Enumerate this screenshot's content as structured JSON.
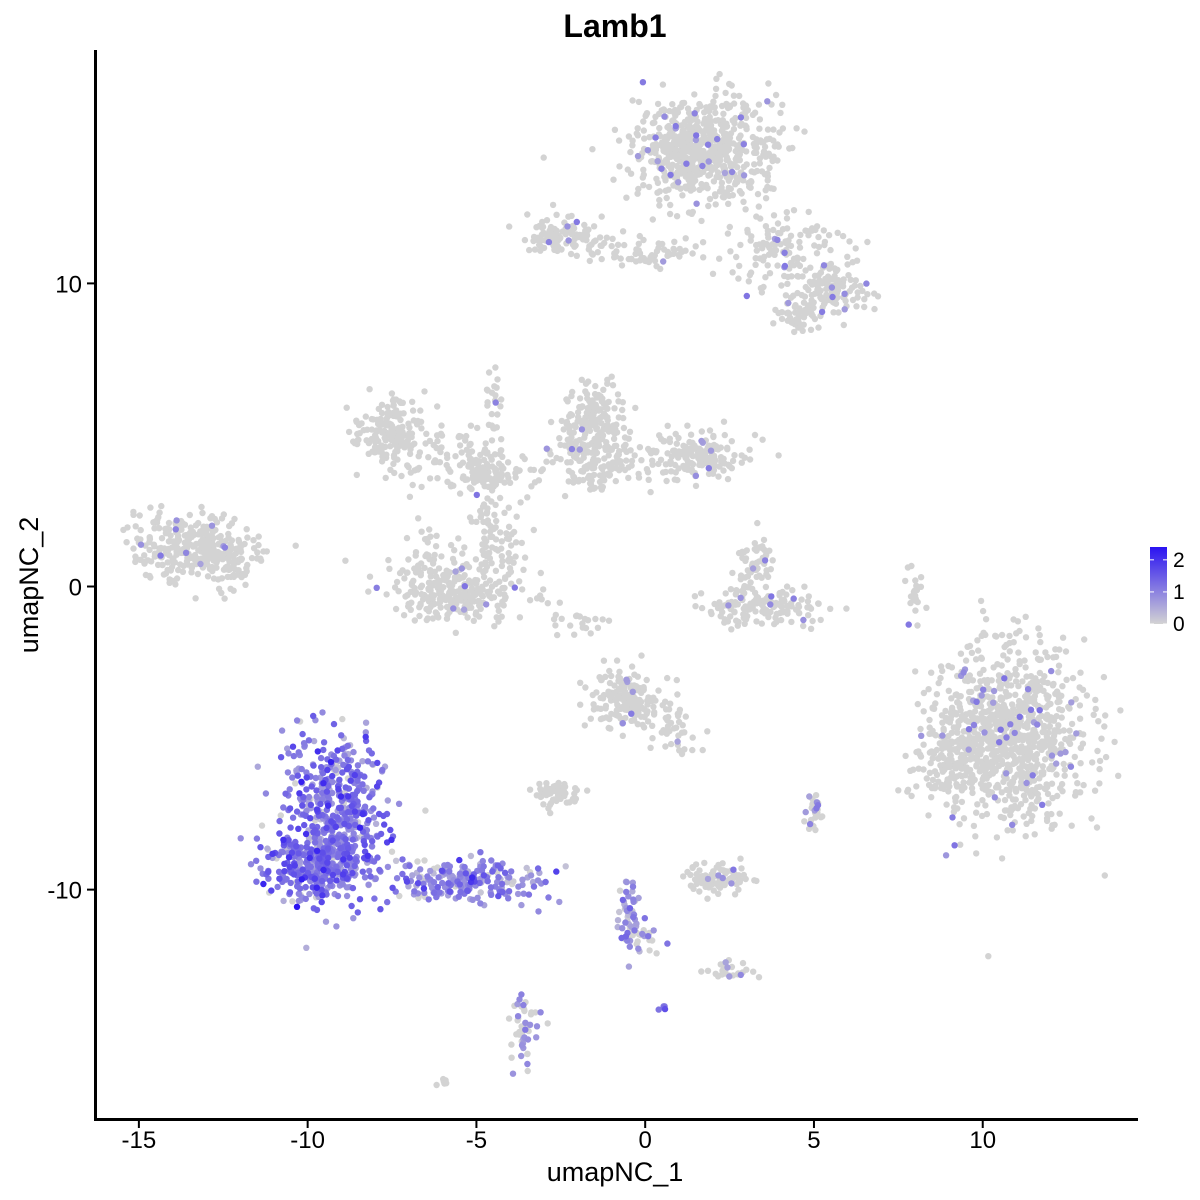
{
  "chart_data": {
    "type": "scatter",
    "title": "Lamb1",
    "xlabel": "umapNC_1",
    "ylabel": "umapNC_2",
    "xlim": [
      -16.3,
      14.6
    ],
    "ylim": [
      -17.6,
      17.7
    ],
    "x_ticks": [
      -15,
      -10,
      -5,
      0,
      5,
      10
    ],
    "y_ticks": [
      -10,
      0,
      10
    ],
    "x_tick_labels": [
      "-15",
      "-10",
      "-5",
      "0",
      "5",
      "10"
    ],
    "y_tick_labels": [
      "-10",
      "0",
      "10"
    ],
    "grid": false,
    "legend": {
      "placement": "right",
      "type": "colorbar",
      "min": 0,
      "max": 2.4,
      "ticks": [
        0,
        1,
        2
      ],
      "tick_labels": [
        "0",
        "1",
        "2"
      ],
      "low_color": "#d3d3d3",
      "high_color": "#2a13f2"
    },
    "clusters": [
      {
        "cx": 1.7,
        "cy": 14.4,
        "sx": 1.0,
        "sy": 0.9,
        "n": 700,
        "expr": 0.02
      },
      {
        "cx": -2.5,
        "cy": 11.6,
        "sx": 0.55,
        "sy": 0.3,
        "n": 110,
        "expr": 0.02
      },
      {
        "cx": 0.0,
        "cy": 11.0,
        "sx": 0.9,
        "sy": 0.25,
        "n": 70,
        "expr": 0.0
      },
      {
        "cx": 4.2,
        "cy": 11.0,
        "sx": 0.8,
        "sy": 0.6,
        "n": 130,
        "expr": 0.0
      },
      {
        "cx": 5.5,
        "cy": 9.7,
        "sx": 0.5,
        "sy": 0.35,
        "n": 110,
        "expr": 0.02
      },
      {
        "cx": 4.6,
        "cy": 8.9,
        "sx": 0.3,
        "sy": 0.3,
        "n": 50,
        "expr": 0.0
      },
      {
        "cx": -7.6,
        "cy": 5.1,
        "sx": 0.55,
        "sy": 0.55,
        "n": 160,
        "expr": 0.0
      },
      {
        "cx": -5.8,
        "cy": 4.2,
        "sx": 0.9,
        "sy": 0.5,
        "n": 90,
        "expr": 0.0
      },
      {
        "cx": -4.5,
        "cy": 3.7,
        "sx": 0.45,
        "sy": 0.25,
        "n": 70,
        "expr": 0.0
      },
      {
        "cx": -4.5,
        "cy": 6.0,
        "sx": 0.2,
        "sy": 0.9,
        "n": 25,
        "expr": 0.0
      },
      {
        "cx": -1.5,
        "cy": 5.4,
        "sx": 0.45,
        "sy": 0.6,
        "n": 180,
        "expr": 0.0
      },
      {
        "cx": -1.6,
        "cy": 4.0,
        "sx": 0.8,
        "sy": 0.5,
        "n": 140,
        "expr": 0.01
      },
      {
        "cx": 1.6,
        "cy": 4.3,
        "sx": 0.75,
        "sy": 0.4,
        "n": 160,
        "expr": 0.02
      },
      {
        "cx": -5.5,
        "cy": -0.2,
        "sx": 1.0,
        "sy": 0.5,
        "n": 240,
        "expr": 0.02
      },
      {
        "cx": -4.4,
        "cy": 1.2,
        "sx": 0.45,
        "sy": 0.6,
        "n": 70,
        "expr": 0.0
      },
      {
        "cx": -6.5,
        "cy": 1.0,
        "sx": 0.3,
        "sy": 0.5,
        "n": 40,
        "expr": 0.0
      },
      {
        "cx": -4.8,
        "cy": 2.3,
        "sx": 0.2,
        "sy": 0.6,
        "n": 20,
        "expr": 0.0
      },
      {
        "cx": -13.4,
        "cy": 1.3,
        "sx": 0.85,
        "sy": 0.55,
        "n": 300,
        "expr": 0.01
      },
      {
        "cx": -12.2,
        "cy": 0.8,
        "sx": 0.4,
        "sy": 0.5,
        "n": 50,
        "expr": 0.0
      },
      {
        "cx": 3.6,
        "cy": -0.7,
        "sx": 0.9,
        "sy": 0.3,
        "n": 150,
        "expr": 0.02
      },
      {
        "cx": 3.4,
        "cy": 0.8,
        "sx": 0.2,
        "sy": 0.5,
        "n": 40,
        "expr": 0.0
      },
      {
        "cx": 2.9,
        "cy": 0.7,
        "sx": 0.15,
        "sy": 0.5,
        "n": 20,
        "expr": 0.0
      },
      {
        "cx": 10.8,
        "cy": -5.0,
        "sx": 1.1,
        "sy": 1.5,
        "n": 900,
        "expr": 0.03
      },
      {
        "cx": 9.0,
        "cy": -5.8,
        "sx": 0.5,
        "sy": 0.8,
        "n": 120,
        "expr": 0.0
      },
      {
        "cx": -0.6,
        "cy": -3.7,
        "sx": 0.5,
        "sy": 0.5,
        "n": 150,
        "expr": 0.02
      },
      {
        "cx": 0.9,
        "cy": -4.5,
        "sx": 0.45,
        "sy": 0.55,
        "n": 50,
        "expr": 0.02
      },
      {
        "cx": -2.6,
        "cy": -6.8,
        "sx": 0.35,
        "sy": 0.25,
        "n": 60,
        "expr": 0.0
      },
      {
        "cx": 2.2,
        "cy": -9.6,
        "sx": 0.45,
        "sy": 0.25,
        "n": 90,
        "expr": 0.05
      },
      {
        "cx": 5.0,
        "cy": -7.4,
        "sx": 0.15,
        "sy": 0.3,
        "n": 25,
        "expr": 0.15
      },
      {
        "cx": 2.5,
        "cy": -12.7,
        "sx": 0.3,
        "sy": 0.15,
        "n": 30,
        "expr": 0.1
      },
      {
        "cx": -3.6,
        "cy": -14.6,
        "sx": 0.2,
        "sy": 0.55,
        "n": 50,
        "expr": 0.35
      },
      {
        "cx": -6.0,
        "cy": -16.3,
        "sx": 0.12,
        "sy": 0.08,
        "n": 8,
        "expr": 0.0
      },
      {
        "cx": 8.0,
        "cy": -0.2,
        "sx": 0.1,
        "sy": 0.5,
        "n": 20,
        "expr": 0.0
      },
      {
        "cx": -2.0,
        "cy": -1.2,
        "sx": 0.7,
        "sy": 0.2,
        "n": 20,
        "expr": 0.0
      },
      {
        "cx": -9.2,
        "cy": -7.5,
        "sx": 0.75,
        "sy": 1.3,
        "n": 520,
        "expr": 1.15
      },
      {
        "cx": -9.8,
        "cy": -9.3,
        "sx": 0.75,
        "sy": 0.5,
        "n": 280,
        "expr": 1.15
      },
      {
        "cx": -5.4,
        "cy": -9.7,
        "sx": 1.2,
        "sy": 0.35,
        "n": 220,
        "expr": 0.95
      },
      {
        "cx": -0.5,
        "cy": -10.8,
        "sx": 0.15,
        "sy": 0.7,
        "n": 45,
        "expr": 0.8
      },
      {
        "cx": -0.2,
        "cy": -11.7,
        "sx": 0.3,
        "sy": 0.3,
        "n": 25,
        "expr": 0.3
      },
      {
        "cx": 0.55,
        "cy": -13.9,
        "sx": 0.05,
        "sy": 0.05,
        "n": 5,
        "expr": 1.2
      }
    ]
  }
}
